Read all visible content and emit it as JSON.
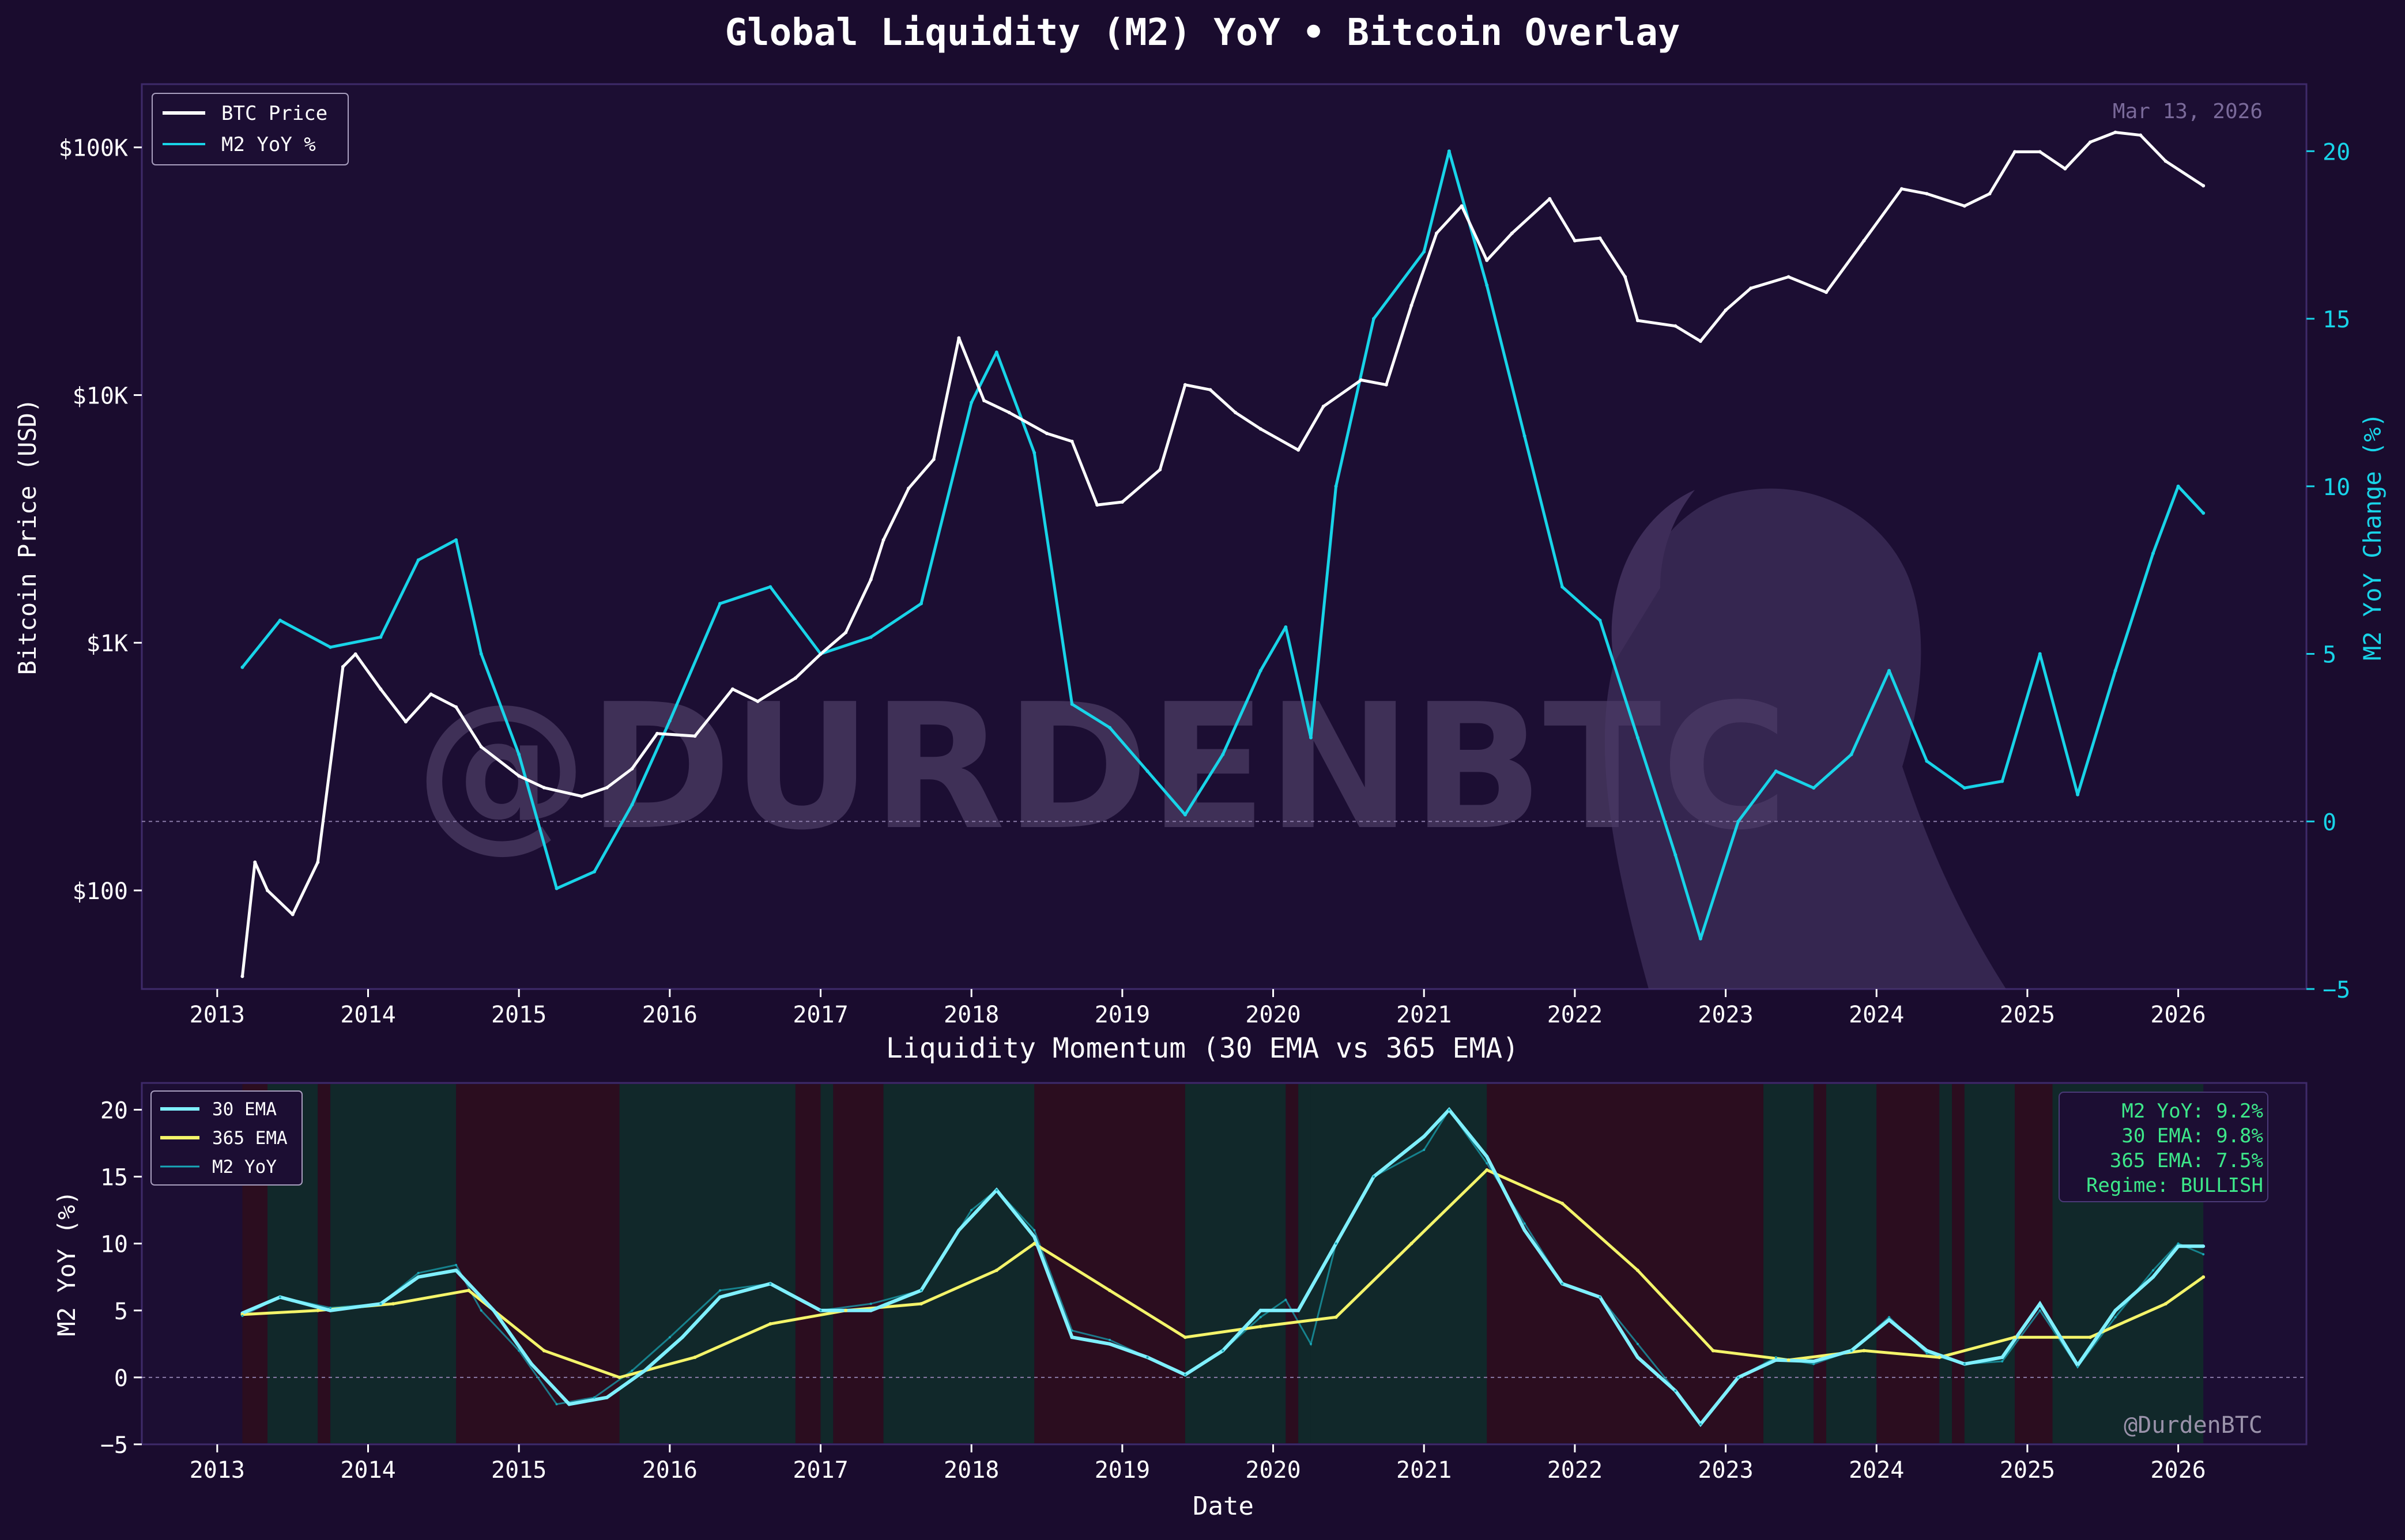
{
  "title": "Global Liquidity (M2) YoY • Bitcoin Overlay",
  "date_label": "Mar 13, 2026",
  "watermark_large": "@DURDENBTC",
  "watermark_small": "@DurdenBTC",
  "colors": {
    "background": "#1a0c2e",
    "btc": "#ffffff",
    "m2": "#18d4e8",
    "ema30": "#7ff0ff",
    "ema365": "#f4f46a",
    "bullish": "#11282a",
    "bearish": "#2b0d1f",
    "stats": "#3de88a"
  },
  "chart_data": [
    {
      "type": "line",
      "title": "Global Liquidity (M2) YoY • Bitcoin Overlay",
      "xlabel": "",
      "ylabel": "Bitcoin Price (USD)",
      "y2label": "M2 YoY Change (%)",
      "yscale": "log",
      "ylim": [
        40,
        180000
      ],
      "y2lim": [
        -5,
        22
      ],
      "x_ticks": [
        "2013",
        "2014",
        "2015",
        "2016",
        "2017",
        "2018",
        "2019",
        "2020",
        "2021",
        "2022",
        "2023",
        "2024",
        "2025",
        "2026"
      ],
      "y_ticks": [
        "$100",
        "$1K",
        "$10K",
        "$100K"
      ],
      "y2_ticks": [
        "−5",
        "0",
        "5",
        "10",
        "15",
        "20"
      ],
      "grid": false,
      "legend_position": "top-left",
      "legend": [
        "BTC Price",
        "M2 YoY %"
      ],
      "series": [
        {
          "name": "BTC Price",
          "x": [
            "2013-03",
            "2013-04",
            "2013-05",
            "2013-07",
            "2013-09",
            "2013-11",
            "2013-12",
            "2014-02",
            "2014-04",
            "2014-06",
            "2014-08",
            "2014-10",
            "2015-01",
            "2015-03",
            "2015-06",
            "2015-08",
            "2015-10",
            "2015-12",
            "2016-03",
            "2016-06",
            "2016-08",
            "2016-11",
            "2017-01",
            "2017-03",
            "2017-05",
            "2017-06",
            "2017-08",
            "2017-10",
            "2017-12",
            "2018-02",
            "2018-04",
            "2018-07",
            "2018-09",
            "2018-11",
            "2019-01",
            "2019-04",
            "2019-06",
            "2019-08",
            "2019-10",
            "2019-12",
            "2020-03",
            "2020-05",
            "2020-08",
            "2020-10",
            "2020-12",
            "2021-02",
            "2021-04",
            "2021-06",
            "2021-08",
            "2021-11",
            "2022-01",
            "2022-03",
            "2022-05",
            "2022-06",
            "2022-09",
            "2022-11",
            "2023-01",
            "2023-03",
            "2023-06",
            "2023-09",
            "2023-12",
            "2024-03",
            "2024-05",
            "2024-08",
            "2024-10",
            "2024-12",
            "2025-02",
            "2025-04",
            "2025-06",
            "2025-08",
            "2025-10",
            "2025-12",
            "2026-03"
          ],
          "values": [
            45,
            130,
            100,
            80,
            130,
            800,
            900,
            650,
            480,
            620,
            550,
            380,
            290,
            260,
            240,
            260,
            310,
            430,
            420,
            650,
            580,
            720,
            900,
            1100,
            1800,
            2600,
            4200,
            5500,
            17000,
            9500,
            8500,
            7000,
            6500,
            3600,
            3700,
            5000,
            11000,
            10500,
            8500,
            7300,
            6000,
            9000,
            11500,
            11000,
            23000,
            45000,
            58000,
            35000,
            45000,
            62000,
            42000,
            43000,
            30000,
            20000,
            19000,
            16500,
            22000,
            27000,
            30000,
            26000,
            42000,
            68000,
            65000,
            58000,
            65000,
            96000,
            96000,
            82000,
            105000,
            115000,
            112000,
            88000,
            70000
          ]
        },
        {
          "name": "M2 YoY %",
          "x": [
            "2013-03",
            "2013-06",
            "2013-10",
            "2014-02",
            "2014-05",
            "2014-08",
            "2014-10",
            "2015-01",
            "2015-04",
            "2015-07",
            "2015-10",
            "2016-01",
            "2016-05",
            "2016-09",
            "2017-01",
            "2017-05",
            "2017-09",
            "2018-01",
            "2018-03",
            "2018-06",
            "2018-09",
            "2018-12",
            "2019-03",
            "2019-06",
            "2019-09",
            "2019-12",
            "2020-02",
            "2020-04",
            "2020-06",
            "2020-09",
            "2021-01",
            "2021-03",
            "2021-06",
            "2021-09",
            "2021-12",
            "2022-03",
            "2022-06",
            "2022-09",
            "2022-11",
            "2023-02",
            "2023-05",
            "2023-08",
            "2023-11",
            "2024-02",
            "2024-05",
            "2024-08",
            "2024-11",
            "2025-02",
            "2025-05",
            "2025-08",
            "2025-11",
            "2026-01",
            "2026-03"
          ],
          "values": [
            4.6,
            6.0,
            5.2,
            5.5,
            7.8,
            8.4,
            5.0,
            2.0,
            -2.0,
            -1.5,
            0.5,
            3.0,
            6.5,
            7.0,
            5.0,
            5.5,
            6.5,
            12.5,
            14.0,
            11.0,
            3.5,
            2.8,
            1.5,
            0.2,
            2.0,
            4.5,
            5.8,
            2.5,
            10.0,
            15.0,
            17.0,
            20.0,
            16.0,
            11.5,
            7.0,
            6.0,
            2.5,
            -1.0,
            -3.5,
            0.0,
            1.5,
            1.0,
            2.0,
            4.5,
            1.8,
            1.0,
            1.2,
            5.0,
            0.8,
            4.5,
            8.0,
            10.0,
            9.2
          ]
        }
      ]
    },
    {
      "type": "line",
      "title": "Liquidity Momentum (30 EMA vs 365 EMA)",
      "xlabel": "Date",
      "ylabel": "M2 YoY (%)",
      "ylim": [
        -5,
        22
      ],
      "x_ticks": [
        "2013",
        "2014",
        "2015",
        "2016",
        "2017",
        "2018",
        "2019",
        "2020",
        "2021",
        "2022",
        "2023",
        "2024",
        "2025",
        "2026"
      ],
      "y_ticks": [
        "−5",
        "0",
        "5",
        "10",
        "15",
        "20"
      ],
      "grid": false,
      "legend_position": "top-left",
      "legend": [
        "30 EMA",
        "365 EMA",
        "M2 YoY"
      ],
      "regimes": [
        {
          "start": "2013-03",
          "end": "2013-05",
          "state": "BEARISH"
        },
        {
          "start": "2013-05",
          "end": "2013-09",
          "state": "BULLISH"
        },
        {
          "start": "2013-09",
          "end": "2013-10",
          "state": "BEARISH"
        },
        {
          "start": "2013-10",
          "end": "2014-08",
          "state": "BULLISH"
        },
        {
          "start": "2014-08",
          "end": "2015-09",
          "state": "BEARISH"
        },
        {
          "start": "2015-09",
          "end": "2016-11",
          "state": "BULLISH"
        },
        {
          "start": "2016-11",
          "end": "2017-01",
          "state": "BEARISH"
        },
        {
          "start": "2017-01",
          "end": "2017-02",
          "state": "BULLISH"
        },
        {
          "start": "2017-02",
          "end": "2017-06",
          "state": "BEARISH"
        },
        {
          "start": "2017-06",
          "end": "2018-06",
          "state": "BULLISH"
        },
        {
          "start": "2018-06",
          "end": "2019-06",
          "state": "BEARISH"
        },
        {
          "start": "2019-06",
          "end": "2020-02",
          "state": "BULLISH"
        },
        {
          "start": "2020-02",
          "end": "2020-03",
          "state": "BEARISH"
        },
        {
          "start": "2020-03",
          "end": "2020-04",
          "state": "BULLISH"
        },
        {
          "start": "2020-04",
          "end": "2021-06",
          "state": "BULLISH"
        },
        {
          "start": "2021-06",
          "end": "2023-04",
          "state": "BEARISH"
        },
        {
          "start": "2023-04",
          "end": "2023-08",
          "state": "BULLISH"
        },
        {
          "start": "2023-08",
          "end": "2023-09",
          "state": "BEARISH"
        },
        {
          "start": "2023-09",
          "end": "2024-01",
          "state": "BULLISH"
        },
        {
          "start": "2024-01",
          "end": "2024-06",
          "state": "BEARISH"
        },
        {
          "start": "2024-06",
          "end": "2024-07",
          "state": "BULLISH"
        },
        {
          "start": "2024-07",
          "end": "2024-08",
          "state": "BEARISH"
        },
        {
          "start": "2024-08",
          "end": "2024-12",
          "state": "BULLISH"
        },
        {
          "start": "2024-12",
          "end": "2025-03",
          "state": "BEARISH"
        },
        {
          "start": "2025-03",
          "end": "2026-03",
          "state": "BULLISH"
        }
      ],
      "series": [
        {
          "name": "30 EMA",
          "x": [
            "2013-03",
            "2013-06",
            "2013-10",
            "2014-02",
            "2014-05",
            "2014-08",
            "2014-11",
            "2015-02",
            "2015-05",
            "2015-08",
            "2015-11",
            "2016-02",
            "2016-05",
            "2016-09",
            "2017-01",
            "2017-05",
            "2017-09",
            "2017-12",
            "2018-03",
            "2018-06",
            "2018-09",
            "2018-12",
            "2019-03",
            "2019-06",
            "2019-09",
            "2019-12",
            "2020-03",
            "2020-06",
            "2020-09",
            "2021-01",
            "2021-03",
            "2021-06",
            "2021-09",
            "2021-12",
            "2022-03",
            "2022-06",
            "2022-09",
            "2022-11",
            "2023-02",
            "2023-05",
            "2023-08",
            "2023-11",
            "2024-02",
            "2024-05",
            "2024-08",
            "2024-11",
            "2025-02",
            "2025-05",
            "2025-08",
            "2025-11",
            "2026-01",
            "2026-03"
          ],
          "values": [
            4.8,
            6.0,
            5.0,
            5.5,
            7.5,
            8.0,
            5.0,
            1.0,
            -2.0,
            -1.5,
            0.5,
            3.0,
            6.0,
            7.0,
            5.0,
            5.0,
            6.5,
            11.0,
            14.0,
            10.5,
            3.0,
            2.5,
            1.5,
            0.2,
            2.0,
            5.0,
            5.0,
            10.0,
            15.0,
            18.0,
            20.0,
            16.5,
            11.0,
            7.0,
            6.0,
            1.5,
            -1.0,
            -3.5,
            0.0,
            1.3,
            1.2,
            2.0,
            4.3,
            2.0,
            1.0,
            1.5,
            5.5,
            0.9,
            5.0,
            7.5,
            9.8,
            9.8
          ]
        },
        {
          "name": "365 EMA",
          "x": [
            "2013-03",
            "2013-09",
            "2014-03",
            "2014-09",
            "2015-03",
            "2015-09",
            "2016-03",
            "2016-09",
            "2017-03",
            "2017-09",
            "2018-03",
            "2018-06",
            "2018-12",
            "2019-06",
            "2019-12",
            "2020-06",
            "2020-12",
            "2021-06",
            "2021-12",
            "2022-06",
            "2022-12",
            "2023-06",
            "2023-12",
            "2024-06",
            "2024-12",
            "2025-06",
            "2025-12",
            "2026-03"
          ],
          "values": [
            4.7,
            5.0,
            5.5,
            6.5,
            2.0,
            0.0,
            1.5,
            4.0,
            5.0,
            5.5,
            8.0,
            10.0,
            6.5,
            3.0,
            3.8,
            4.5,
            10.0,
            15.5,
            13.0,
            8.0,
            2.0,
            1.3,
            2.0,
            1.5,
            3.0,
            3.0,
            5.5,
            7.5
          ]
        },
        {
          "name": "M2 YoY",
          "x": [
            "2013-03",
            "2013-06",
            "2013-10",
            "2014-02",
            "2014-05",
            "2014-08",
            "2014-10",
            "2015-01",
            "2015-04",
            "2015-07",
            "2015-10",
            "2016-01",
            "2016-05",
            "2016-09",
            "2017-01",
            "2017-05",
            "2017-09",
            "2018-01",
            "2018-03",
            "2018-06",
            "2018-09",
            "2018-12",
            "2019-03",
            "2019-06",
            "2019-09",
            "2019-12",
            "2020-02",
            "2020-04",
            "2020-06",
            "2020-09",
            "2021-01",
            "2021-03",
            "2021-06",
            "2021-09",
            "2021-12",
            "2022-03",
            "2022-06",
            "2022-09",
            "2022-11",
            "2023-02",
            "2023-05",
            "2023-08",
            "2023-11",
            "2024-02",
            "2024-05",
            "2024-08",
            "2024-11",
            "2025-02",
            "2025-05",
            "2025-08",
            "2025-11",
            "2026-01",
            "2026-03"
          ],
          "values": [
            4.6,
            6.0,
            5.2,
            5.5,
            7.8,
            8.4,
            5.0,
            2.0,
            -2.0,
            -1.5,
            0.5,
            3.0,
            6.5,
            7.0,
            5.0,
            5.5,
            6.5,
            12.5,
            14.0,
            11.0,
            3.5,
            2.8,
            1.5,
            0.2,
            2.0,
            4.5,
            5.8,
            2.5,
            10.0,
            15.0,
            17.0,
            20.0,
            16.0,
            11.5,
            7.0,
            6.0,
            2.5,
            -1.0,
            -3.5,
            0.0,
            1.5,
            1.0,
            2.0,
            4.5,
            1.8,
            1.0,
            1.2,
            5.0,
            0.8,
            4.5,
            8.0,
            10.0,
            9.2
          ]
        }
      ],
      "stats": [
        "M2 YoY: 9.2%",
        "30 EMA: 9.8%",
        "365 EMA: 7.5%",
        "Regime: BULLISH"
      ]
    }
  ]
}
